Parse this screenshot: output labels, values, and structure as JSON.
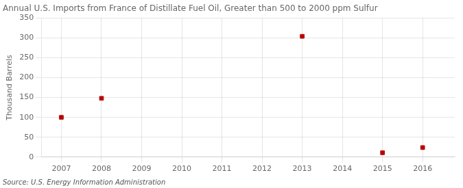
{
  "chart_data": {
    "type": "scatter",
    "title": "Annual U.S. Imports from France of Distillate Fuel Oil, Greater than 500 to 2000 ppm Sulfur",
    "ylabel": "Thousand Barrels",
    "source": "Source: U.S. Energy Information Administration",
    "x": [
      2007,
      2008,
      2013,
      2015,
      2016
    ],
    "values": [
      100,
      148,
      304,
      11,
      24
    ],
    "color": "#bb0000",
    "marker": "square",
    "xlim": [
      2006.5,
      2016.8
    ],
    "ylim": [
      0,
      350
    ],
    "xticks": [
      2007,
      2008,
      2009,
      2010,
      2011,
      2012,
      2013,
      2014,
      2015,
      2016
    ],
    "yticks": [
      0,
      50,
      100,
      150,
      200,
      250,
      300,
      350
    ],
    "grid": true
  }
}
